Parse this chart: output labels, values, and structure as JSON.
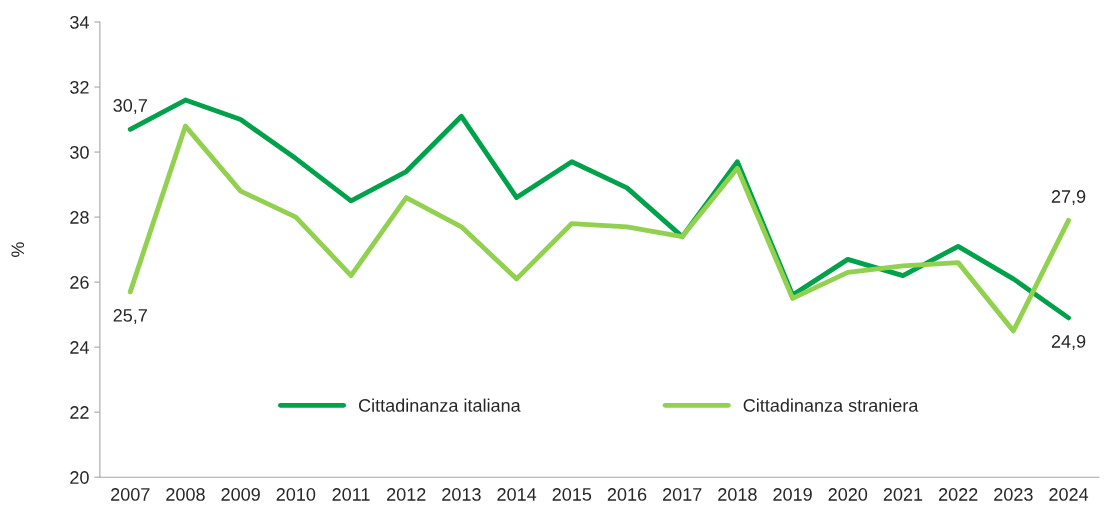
{
  "chart_data": {
    "type": "line",
    "ylabel": "%",
    "categories": [
      "2007",
      "2008",
      "2009",
      "2010",
      "2011",
      "2012",
      "2013",
      "2014",
      "2015",
      "2016",
      "2017",
      "2018",
      "2019",
      "2020",
      "2021",
      "2022",
      "2023",
      "2024"
    ],
    "series": [
      {
        "name": "Cittadinanza italiana",
        "color": "#00a14b",
        "values": [
          30.7,
          31.6,
          31.0,
          29.8,
          28.5,
          29.4,
          31.1,
          28.6,
          29.7,
          28.9,
          27.4,
          29.7,
          25.6,
          26.7,
          26.2,
          27.1,
          26.1,
          24.9
        ]
      },
      {
        "name": "Cittadinanza straniera",
        "color": "#92d050",
        "values": [
          25.7,
          30.8,
          28.8,
          28.0,
          26.2,
          28.6,
          27.7,
          26.1,
          27.8,
          27.7,
          27.4,
          29.5,
          25.5,
          26.3,
          26.5,
          26.6,
          24.5,
          27.9
        ]
      }
    ],
    "annotations": [
      {
        "text": "30,7",
        "x": "2007",
        "y": 30.7
      },
      {
        "text": "25,7",
        "x": "2007",
        "y": 25.7
      },
      {
        "text": "27,9",
        "x": "2024",
        "y": 27.9
      },
      {
        "text": "24,9",
        "x": "2024",
        "y": 24.9
      }
    ],
    "ylim": [
      20,
      34
    ],
    "yticks": [
      20,
      22,
      24,
      26,
      28,
      30,
      32,
      34
    ],
    "grid": false,
    "legend": "bottom",
    "marker": "none",
    "line_style": "solid"
  }
}
